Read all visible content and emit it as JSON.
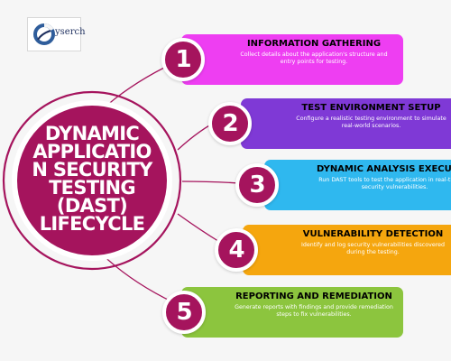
{
  "logo": {
    "text": "yserch",
    "icon": "circular-c-logo-icon",
    "colors": {
      "primary": "#2f5d9b",
      "secondary": "#1e2f5f"
    }
  },
  "hub": {
    "lines": [
      "DYNAMIC",
      "APPLICATIO",
      "N SECURITY",
      "TESTING",
      "(DAST)",
      "LIFECYCLE"
    ],
    "color": "#a5145d"
  },
  "steps": [
    {
      "number": "1",
      "title": "INFORMATION GATHERING",
      "description": "Collect details about the application's structure and entry points for testing.",
      "color": "#ee3ef2"
    },
    {
      "number": "2",
      "title": "TEST ENVIRONMENT SETUP",
      "description": "Configure a realistic testing environment to simulate real-world scenarios.",
      "color": "#7f39d6"
    },
    {
      "number": "3",
      "title": "DYNAMIC ANALYSIS EXECUTION",
      "description": "Run DAST tools to test the application in real-time for security vulnerabilities.",
      "color": "#2fb8ef"
    },
    {
      "number": "4",
      "title": "VULNERABILITY DETECTION",
      "description": "Identify and log security vulnerabilities discovered during the testing.",
      "color": "#f5a60e"
    },
    {
      "number": "5",
      "title": "REPORTING AND REMEDIATION",
      "description": "Generate reports with findings and provide remediation steps to fix vulnerabilities.",
      "color": "#8cc53e"
    }
  ],
  "badge_color": "#a5145d",
  "connector_color": "#a5145d"
}
